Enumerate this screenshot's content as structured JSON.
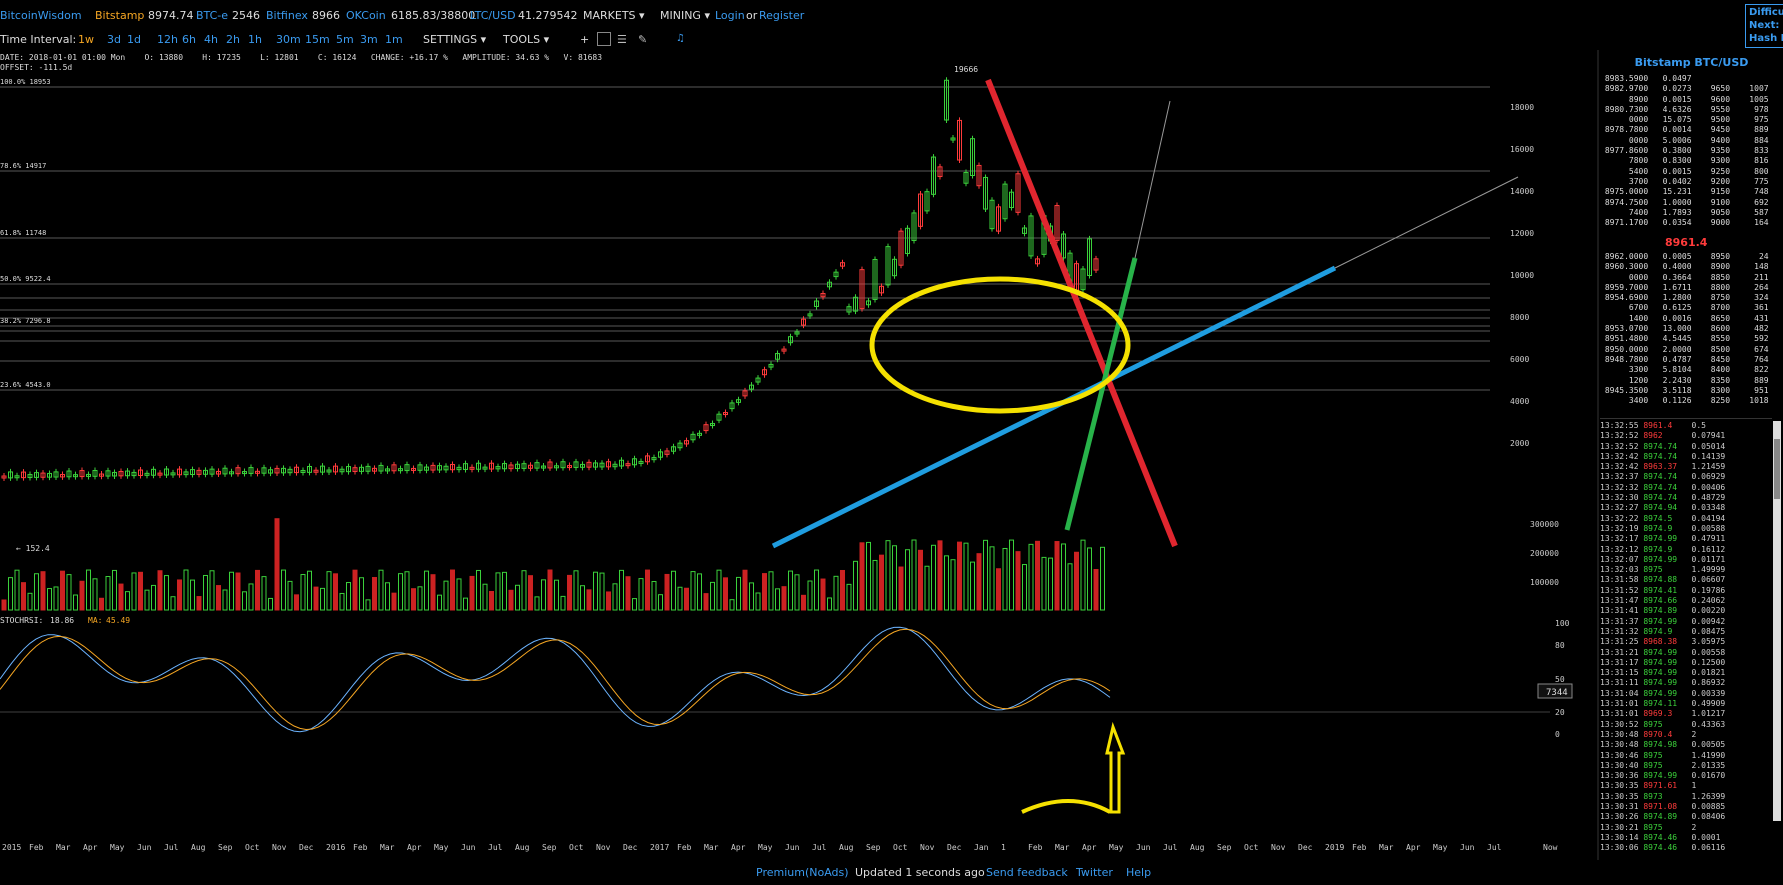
{
  "topbar": {
    "brand": "BitcoinWisdom",
    "tickers": [
      {
        "name": "Bitstamp",
        "value": "8974.74"
      },
      {
        "name": "BTC-e",
        "value": "2546"
      },
      {
        "name": "Bitfinex",
        "value": "8966"
      },
      {
        "name": "OKCoin",
        "value": "6185.83/38800"
      },
      {
        "name": "LTC/USD",
        "value": "41.279542"
      }
    ],
    "markets_label": "MARKETS ▾",
    "mining_label": "MINING ▾",
    "login_label": "Login",
    "or_label": "or",
    "register_label": "Register"
  },
  "difficulty": {
    "line1": "Difficu",
    "line2": "Next:",
    "line3": "Hash R"
  },
  "toolbar": {
    "time_interval_label": "Time Interval:",
    "intervals": [
      "1w",
      "3d",
      "1d",
      "12h",
      "6h",
      "4h",
      "2h",
      "1h",
      "30m",
      "15m",
      "5m",
      "3m",
      "1m"
    ],
    "active_interval": "1w",
    "settings_label": "SETTINGS ▾",
    "tools_label": "TOOLS ▾",
    "crosshair": "+",
    "bell": "🔔"
  },
  "info": {
    "line": "DATE: 2018-01-01 01:00 Mon    O: 13880    H: 17235    L: 12801    C: 16124   CHANGE: +16.17 %   AMPLITUDE: 34.63 %   V: 81683",
    "offset": "OFFSET: -111.5d"
  },
  "chart": {
    "peak_label": "19666",
    "low_label": "← 152.4",
    "fib_labels": [
      "100.0% 18953",
      "78.6% 14917",
      "61.8% 11748",
      "50.0% 9522.4",
      "38.2% 7296.8",
      "23.6% 4543.0"
    ],
    "price_ticks": [
      "18000",
      "16000",
      "14000",
      "12000",
      "10000",
      "8000",
      "6000",
      "4000",
      "2000"
    ],
    "volume_ticks": [
      "300000",
      "200000",
      "100000"
    ],
    "volume_badge": "7344",
    "stoch_label": "STOCHRSI:",
    "stoch_value": "18.86",
    "ma_label": "MA:",
    "ma_value": "45.49",
    "stoch_ticks": [
      "100",
      "80",
      "50",
      "20",
      "0"
    ],
    "x_labels": [
      "2015",
      "Feb",
      "Mar",
      "Apr",
      "May",
      "Jun",
      "Jul",
      "Aug",
      "Sep",
      "Oct",
      "Nov",
      "Dec",
      "2016",
      "Feb",
      "Mar",
      "Apr",
      "May",
      "Jun",
      "Jul",
      "Aug",
      "Sep",
      "Oct",
      "Nov",
      "Dec",
      "2017",
      "Feb",
      "Mar",
      "Apr",
      "May",
      "Jun",
      "Jul",
      "Aug",
      "Sep",
      "Oct",
      "Nov",
      "Dec",
      "Jan",
      "1",
      "Feb",
      "Mar",
      "Apr",
      "May",
      "Jun",
      "Jul",
      "Aug",
      "Sep",
      "Oct",
      "Nov",
      "Dec",
      "2019",
      "Feb",
      "Mar",
      "Apr",
      "May",
      "Jun",
      "Jul"
    ],
    "x_now": "Now"
  },
  "panel": {
    "title": "Bitstamp BTC/USD",
    "mid_price": "8961.4",
    "asks": [
      [
        "8983.5900",
        "0.0497",
        "",
        ""
      ],
      [
        "8982.9700",
        "0.0273",
        "9650",
        "1007"
      ],
      [
        "8900",
        "0.0015",
        "9600",
        "1005"
      ],
      [
        "8980.7300",
        "4.6326",
        "9550",
        "978"
      ],
      [
        "0000",
        "15.075",
        "9500",
        "975"
      ],
      [
        "8978.7800",
        "0.0014",
        "9450",
        "889"
      ],
      [
        "0000",
        "5.0006",
        "9400",
        "884"
      ],
      [
        "8977.8600",
        "0.3800",
        "9350",
        "833"
      ],
      [
        "7800",
        "0.8300",
        "9300",
        "816"
      ],
      [
        "5400",
        "0.0015",
        "9250",
        "800"
      ],
      [
        "3700",
        "0.0402",
        "9200",
        "775"
      ],
      [
        "8975.0000",
        "15.231",
        "9150",
        "748"
      ],
      [
        "8974.7500",
        "1.0000",
        "9100",
        "692"
      ],
      [
        "7400",
        "1.7893",
        "9050",
        "587"
      ],
      [
        "8971.1700",
        "0.0354",
        "9000",
        "164"
      ]
    ],
    "bids": [
      [
        "8962.0000",
        "0.0005",
        "8950",
        "24"
      ],
      [
        "8960.3000",
        "0.4000",
        "8900",
        "148"
      ],
      [
        "0000",
        "0.3664",
        "8850",
        "211"
      ],
      [
        "8959.7000",
        "1.6711",
        "8800",
        "264"
      ],
      [
        "8954.6900",
        "1.2800",
        "8750",
        "324"
      ],
      [
        "6700",
        "0.6125",
        "8700",
        "361"
      ],
      [
        "1400",
        "0.0016",
        "8650",
        "431"
      ],
      [
        "8953.0700",
        "13.000",
        "8600",
        "482"
      ],
      [
        "8951.4800",
        "4.5445",
        "8550",
        "592"
      ],
      [
        "8950.0000",
        "2.0000",
        "8500",
        "674"
      ],
      [
        "8948.7800",
        "0.4787",
        "8450",
        "764"
      ],
      [
        "3300",
        "5.8104",
        "8400",
        "822"
      ],
      [
        "1200",
        "2.2430",
        "8350",
        "889"
      ],
      [
        "8945.3500",
        "3.5118",
        "8300",
        "951"
      ],
      [
        "3400",
        "0.1126",
        "8250",
        "1018"
      ]
    ],
    "trades": [
      [
        "13:32:55",
        "8961.4",
        "0.5",
        "r"
      ],
      [
        "13:32:52",
        "8962",
        "0.07941",
        "r"
      ],
      [
        "13:32:52",
        "8974.74",
        "0.05014",
        "g"
      ],
      [
        "13:32:42",
        "8974.74",
        "0.14139",
        "g"
      ],
      [
        "13:32:42",
        "8963.37",
        "1.21459",
        "r"
      ],
      [
        "13:32:37",
        "8974.74",
        "0.06929",
        "g"
      ],
      [
        "13:32:32",
        "8974.74",
        "0.00406",
        "g"
      ],
      [
        "13:32:30",
        "8974.74",
        "0.48729",
        "g"
      ],
      [
        "13:32:27",
        "8974.94",
        "0.03348",
        "g"
      ],
      [
        "13:32:22",
        "8974.5",
        "0.04194",
        "g"
      ],
      [
        "13:32:19",
        "8974.9",
        "0.00588",
        "g"
      ],
      [
        "13:32:17",
        "8974.99",
        "0.47911",
        "g"
      ],
      [
        "13:32:12",
        "8974.9",
        "0.16112",
        "g"
      ],
      [
        "13:32:07",
        "8974.99",
        "0.01171",
        "g"
      ],
      [
        "13:32:03",
        "8975",
        "1.49999",
        "g"
      ],
      [
        "13:31:58",
        "8974.88",
        "0.06607",
        "g"
      ],
      [
        "13:31:52",
        "8974.41",
        "0.19786",
        "g"
      ],
      [
        "13:31:47",
        "8974.66",
        "0.24062",
        "g"
      ],
      [
        "13:31:41",
        "8974.89",
        "0.00220",
        "g"
      ],
      [
        "13:31:37",
        "8974.99",
        "0.00942",
        "g"
      ],
      [
        "13:31:32",
        "8974.9",
        "0.08475",
        "g"
      ],
      [
        "13:31:25",
        "8968.38",
        "3.05975",
        "r"
      ],
      [
        "13:31:21",
        "8974.99",
        "0.00558",
        "g"
      ],
      [
        "13:31:17",
        "8974.99",
        "0.12500",
        "g"
      ],
      [
        "13:31:15",
        "8974.99",
        "0.01821",
        "g"
      ],
      [
        "13:31:11",
        "8974.99",
        "0.86932",
        "g"
      ],
      [
        "13:31:04",
        "8974.99",
        "0.00339",
        "g"
      ],
      [
        "13:31:01",
        "8974.11",
        "0.49909",
        "g"
      ],
      [
        "13:31:01",
        "8969.3",
        "1.01217",
        "r"
      ],
      [
        "13:30:52",
        "8975",
        "0.43363",
        "g"
      ],
      [
        "13:30:48",
        "8970.4",
        "2",
        "r"
      ],
      [
        "13:30:48",
        "8974.98",
        "0.00505",
        "g"
      ],
      [
        "13:30:46",
        "8975",
        "1.41990",
        "g"
      ],
      [
        "13:30:40",
        "8975",
        "2.01335",
        "g"
      ],
      [
        "13:30:36",
        "8974.99",
        "0.01670",
        "g"
      ],
      [
        "13:30:35",
        "8971.61",
        "1",
        "r"
      ],
      [
        "13:30:35",
        "8973",
        "1.26399",
        "g"
      ],
      [
        "13:30:31",
        "8971.08",
        "0.00885",
        "r"
      ],
      [
        "13:30:26",
        "8974.89",
        "0.08406",
        "g"
      ],
      [
        "13:30:21",
        "8975",
        "2",
        "g"
      ],
      [
        "13:30:14",
        "8974.46",
        "0.0001",
        "g"
      ],
      [
        "13:30:06",
        "8974.46",
        "0.06116",
        "g"
      ]
    ]
  },
  "footer": {
    "premium": "Premium(NoAds)",
    "updated": "Updated 1 seconds ago",
    "feedback": "Send feedback",
    "twitter": "Twitter",
    "help": "Help"
  },
  "colors": {
    "accent": "#3a9bf0",
    "up": "#3bd13b",
    "down": "#ff3b3b",
    "brand_price": "#f5a623"
  }
}
